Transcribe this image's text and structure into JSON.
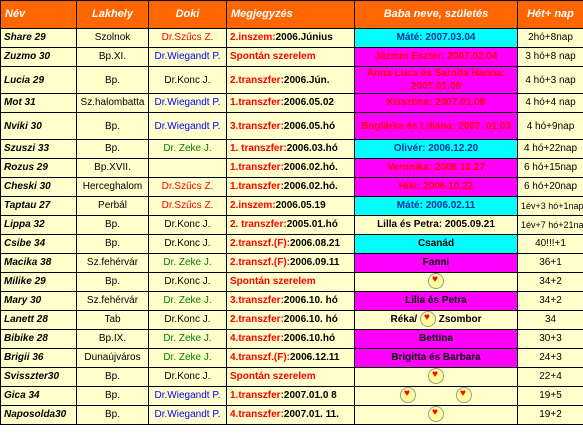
{
  "header": {
    "nev": "Név",
    "lakhely": "Lakhely",
    "doki": "Doki",
    "megjegyzes": "Megjegyzés",
    "baba": "Baba neve, születés",
    "het": "Hét+ nap"
  },
  "rows": [
    {
      "nev": "Share 29",
      "lakhely": "Szolnok",
      "doki": "Dr.Szűcs Z.",
      "doki_color": "red",
      "meg_a": "2.inszem:",
      "meg_b": "2006.Június",
      "meg_color": "red",
      "baba": "Máté: 2007.03.04",
      "baba_bg": "cyan",
      "baba_color": "teal",
      "het": "2hó+8nap"
    },
    {
      "nev": "Zuzmo 30",
      "lakhely": "Bp.XI.",
      "doki": "Dr.Wiegandt P.",
      "doki_color": "blue",
      "meg_a": "Spontán szerelem",
      "meg_b": "",
      "meg_color": "red",
      "baba": "Jázmin Eszter: 2007.02.04",
      "baba_bg": "mag",
      "baba_color": "red",
      "het": "3 hó+8 nap"
    },
    {
      "nev": "Lucia 29",
      "lakhely": "Bp.",
      "doki": "Dr.Konc J.",
      "doki_color": "black",
      "meg_a": "2.transzfer:",
      "meg_b": "2006.Jún.",
      "meg_color": "red",
      "baba": "Anna Luca és Sarolta Hanna: 2007.01.09",
      "baba_bg": "mag",
      "baba_color": "red",
      "het": "4 hó+3 nap",
      "tall": true
    },
    {
      "nev": "Mot 31",
      "lakhely": "Sz.halombatta",
      "doki": "Dr.Wiegandt P.",
      "doki_color": "blue",
      "meg_a": "1.transzfer:",
      "meg_b": "2006.05.02",
      "meg_color": "red",
      "baba": "Krisztina: 2007.01.08",
      "baba_bg": "mag",
      "baba_color": "red",
      "het": "4 hó+4 nap"
    },
    {
      "nev": "Nviki 30",
      "lakhely": "Bp.",
      "doki": "Dr.Wiegandt P.",
      "doki_color": "blue",
      "meg_a": "3.transzfer:",
      "meg_b": "2006.05.hó",
      "meg_color": "red",
      "baba": "Boglárka és Liliána: 2007. 01.03",
      "baba_bg": "mag",
      "baba_color": "red",
      "het": "4 hó+9nap",
      "tall": true
    },
    {
      "nev": "Szuszi 33",
      "lakhely": "Bp.",
      "doki": "Dr. Zeke J.",
      "doki_color": "green",
      "meg_a": "1. transzfer:",
      "meg_b": "2006.03.hó",
      "meg_color": "red",
      "baba": "Olivér: 2006.12.20",
      "baba_bg": "cyan",
      "baba_color": "teal",
      "het": "4 hó+22nap"
    },
    {
      "nev": "Rozus 29",
      "lakhely": "Bp.XVII.",
      "doki": "",
      "doki_color": "black",
      "meg_a": "1.transzfer:",
      "meg_b": "2006.02.hó.",
      "meg_color": "red",
      "baba": "Veronika: 2006.10.27",
      "baba_bg": "mag",
      "baba_color": "red",
      "het": "6 hó+15nap"
    },
    {
      "nev": "Cheski 30",
      "lakhely": "Herceghalom",
      "doki": "Dr.Szűcs Z.",
      "doki_color": "red",
      "meg_a": "1.transzfer:",
      "meg_b": "2006.02.hó.",
      "meg_color": "red",
      "baba": "Hiki: 2006.10.22",
      "baba_bg": "mag",
      "baba_color": "red",
      "het": "6 hó+20nap"
    },
    {
      "nev": "Taptau 27",
      "lakhely": "Perbál",
      "doki": "Dr.Szűcs Z.",
      "doki_color": "red",
      "meg_a": "2.inszem:",
      "meg_b": "2006.05.19",
      "meg_color": "red",
      "baba": "Máté: 2006.02.11",
      "baba_bg": "cyan",
      "baba_color": "teal",
      "het": "1év+3 hó+1nap"
    },
    {
      "nev": "Lippa 32",
      "lakhely": "Bp.",
      "doki": "Dr.Konc J.",
      "doki_color": "black",
      "meg_a": "2. transzfer:",
      "meg_b": "2005.01.hó",
      "meg_color": "red",
      "baba": "Lilla és Petra: 2005.09.21",
      "baba_bg": "",
      "baba_color": "black",
      "het": "1év+7 hó+21nap"
    },
    {
      "nev": "Csibe 34",
      "lakhely": "Bp.",
      "doki": "Dr.Konc J.",
      "doki_color": "black",
      "meg_a": "2.transzf.(F):",
      "meg_b": "2006.08.21",
      "meg_color": "red",
      "baba": "Csanád",
      "baba_bg": "cyan",
      "baba_color": "black",
      "het": "40!!!+1"
    },
    {
      "nev": "Macika 38",
      "lakhely": "Sz.fehérvár",
      "doki": "Dr. Zeke J.",
      "doki_color": "green",
      "meg_a": "2.transzf.(F):",
      "meg_b": "2006.09.11",
      "meg_color": "red",
      "baba": "Fanni",
      "baba_bg": "mag",
      "baba_color": "black",
      "het": "36+1"
    },
    {
      "nev": "Milike 29",
      "lakhely": "Bp.",
      "doki": "Dr.Konc J.",
      "doki_color": "black",
      "meg_a": "Spontán szerelem",
      "meg_b": "",
      "meg_color": "red",
      "baba": "",
      "baba_bg": "",
      "baba_color": "black",
      "heart": "single",
      "het": "34+2"
    },
    {
      "nev": "Mary 30",
      "lakhely": "Sz.fehérvár",
      "doki": "Dr. Zeke J.",
      "doki_color": "green",
      "meg_a": "3.transzfer:",
      "meg_b": "2006.10. hó",
      "meg_color": "red",
      "baba": "Lilla és Petra",
      "baba_bg": "mag",
      "baba_color": "black",
      "het": "34+2"
    },
    {
      "nev": "Lanett 28",
      "lakhely": "Tab",
      "doki": "Dr.Konc J.",
      "doki_color": "black",
      "meg_a": "2.transzfer:",
      "meg_b": "2006.10. hó",
      "meg_color": "red",
      "baba": "Réka/ ",
      "baba_b": " Zsombor",
      "baba_bg": "",
      "baba_color": "black",
      "heart": "mid",
      "het": "34"
    },
    {
      "nev": "Bibike 28",
      "lakhely": "Bp.IX.",
      "doki": "Dr. Zeke J.",
      "doki_color": "green",
      "meg_a": "4.transzfer:",
      "meg_b": "2006.10.hó",
      "meg_color": "red",
      "baba": "Bettina",
      "baba_bg": "mag",
      "baba_color": "black",
      "het": "30+3"
    },
    {
      "nev": "Brigii 36",
      "lakhely": "Dunaújváros",
      "doki": "Dr. Zeke J.",
      "doki_color": "green",
      "meg_a": "4.transzf.(F):",
      "meg_b": "2006.12.11",
      "meg_color": "red",
      "baba": "Brigitta és Barbara",
      "baba_bg": "mag",
      "baba_color": "black",
      "het": "24+3"
    },
    {
      "nev": "Svisszter30",
      "lakhely": "Bp.",
      "doki": "Dr.Konc J.",
      "doki_color": "black",
      "meg_a": "Spontán szerelem",
      "meg_b": "",
      "meg_color": "red",
      "baba": "",
      "baba_bg": "",
      "baba_color": "black",
      "heart": "single",
      "het": "22+4"
    },
    {
      "nev": "Gica 34",
      "lakhely": "Bp.",
      "doki": "Dr.Wiegandt P.",
      "doki_color": "blue",
      "meg_a": "1.transzfer:",
      "meg_b": "2007.01.0 8",
      "meg_color": "red",
      "baba": "",
      "baba_bg": "",
      "baba_color": "black",
      "heart": "double",
      "het": "19+5"
    },
    {
      "nev": "Naposolda30",
      "lakhely": "Bp.",
      "doki": "Dr.Wiegandt P.",
      "doki_color": "blue",
      "meg_a": "4.transzfer:",
      "meg_b": "2007.01. 11.",
      "meg_color": "red",
      "baba": "",
      "baba_bg": "",
      "baba_color": "black",
      "heart": "single",
      "het": "19+2"
    }
  ]
}
